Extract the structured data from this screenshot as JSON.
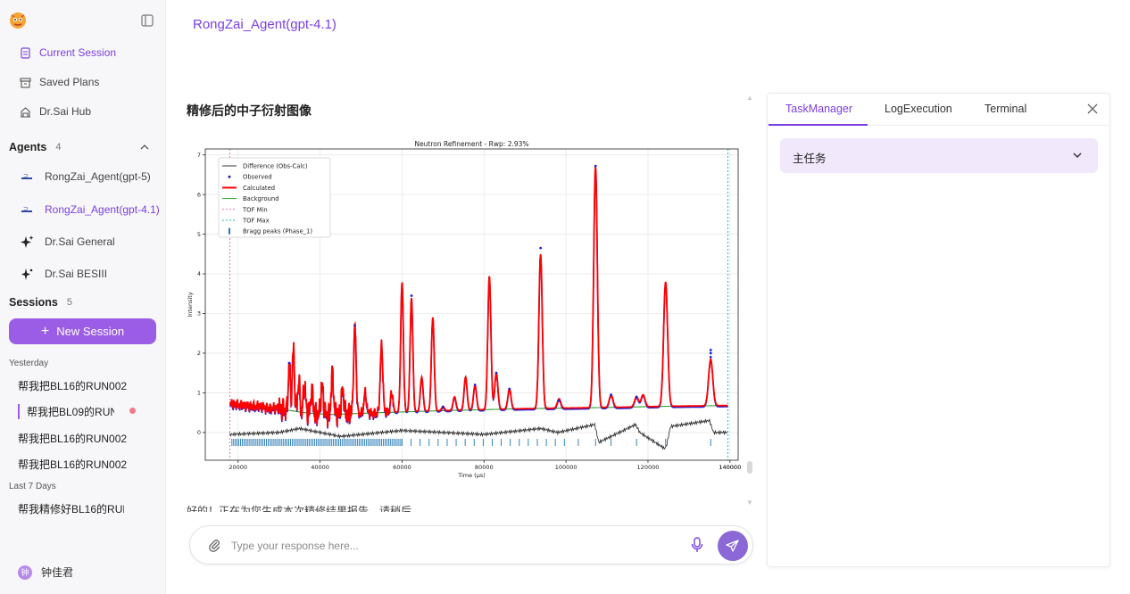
{
  "sidebar": {
    "nav": [
      {
        "label": "Current Session",
        "icon": "document-icon",
        "active": true
      },
      {
        "label": "Saved Plans",
        "icon": "archive-icon",
        "active": false
      },
      {
        "label": "Dr.Sai Hub",
        "icon": "hub-icon",
        "active": false
      }
    ],
    "agents_label": "Agents",
    "agents_count": "4",
    "agents": [
      {
        "label": "RongZai_Agent(gpt-5)",
        "active": false
      },
      {
        "label": "RongZai_Agent(gpt-4.1)",
        "active": true
      },
      {
        "label": "Dr.Sai General",
        "active": false
      },
      {
        "label": "Dr.Sai BESIII",
        "active": false
      }
    ],
    "sessions_label": "Sessions",
    "sessions_count": "5",
    "new_session_label": "New Session",
    "groups": [
      {
        "label": "Yesterday",
        "items": [
          "帮我把BL16的RUN002",
          "帮我把BL09的RUN",
          "帮我把BL16的RUN002",
          "帮我把BL16的RUN002"
        ]
      },
      {
        "label": "Last 7 Days",
        "items": [
          "帮我精修好BL16的RUN"
        ]
      }
    ],
    "user_name": "钟佳君",
    "user_initial": "钟"
  },
  "header": {
    "agent_title": "RongZai_Agent(gpt-4.1)"
  },
  "main": {
    "message_title": "精修后的中子衍射图像",
    "cut_text": "好的！正在为您生成本次精修结果报告，请稍后",
    "input_placeholder": "Type your response here..."
  },
  "right_panel": {
    "tabs": [
      "TaskManager",
      "LogExecution",
      "Terminal"
    ],
    "active_tab": "TaskManager",
    "task_label": "主任务"
  },
  "colors": {
    "accent": "#7b3fe4",
    "button": "#9b5de5",
    "observed": "#1f1fd6",
    "calculated": "#ff0000",
    "background_curve": "#2ca02c",
    "difference": "#222222",
    "bragg": "#1f77b4",
    "tof_min": "#e377c2",
    "tof_max": "#17becf"
  },
  "chart_data": {
    "type": "line",
    "title": "Neutron Refinement - Rwp: 2.93%",
    "xlabel": "Time (μs)",
    "ylabel": "Intensity",
    "xlim": [
      12000,
      142000
    ],
    "ylim": [
      -0.7,
      7.15
    ],
    "xticks": [
      20000,
      40000,
      60000,
      80000,
      100000,
      120000,
      140000
    ],
    "yticks": [
      0,
      1,
      2,
      3,
      4,
      5,
      6,
      7
    ],
    "grid": true,
    "legend_position": "top-left",
    "legend": [
      "Difference (Obs-Calc)",
      "Observed",
      "Calculated",
      "Background",
      "TOF Min",
      "TOF Max",
      "Bragg peaks (Phase_1)"
    ],
    "tof_min": 18000,
    "tof_max": 139500,
    "background": {
      "x": [
        18000,
        30000,
        36000,
        42000,
        55000,
        70000,
        90000,
        110000,
        125000,
        139500
      ],
      "y": [
        0.72,
        0.6,
        0.5,
        0.45,
        0.5,
        0.55,
        0.6,
        0.63,
        0.66,
        0.68
      ]
    },
    "peaks": [
      {
        "x": 32500,
        "y": 1.7
      },
      {
        "x": 33500,
        "y": 2.1
      },
      {
        "x": 34800,
        "y": 1.3
      },
      {
        "x": 36200,
        "y": 1.2
      },
      {
        "x": 38000,
        "y": 1.1
      },
      {
        "x": 40500,
        "y": 1.2
      },
      {
        "x": 43000,
        "y": 1.5
      },
      {
        "x": 45500,
        "y": 1.1
      },
      {
        "x": 48500,
        "y": 2.7
      },
      {
        "x": 51000,
        "y": 1.0
      },
      {
        "x": 55000,
        "y": 2.2
      },
      {
        "x": 57500,
        "y": 1.0
      },
      {
        "x": 60000,
        "y": 3.8
      },
      {
        "x": 62300,
        "y": 3.4
      },
      {
        "x": 64800,
        "y": 1.4
      },
      {
        "x": 67500,
        "y": 2.9
      },
      {
        "x": 70000,
        "y": 0.65
      },
      {
        "x": 72800,
        "y": 0.9
      },
      {
        "x": 75500,
        "y": 1.4
      },
      {
        "x": 77800,
        "y": 1.2
      },
      {
        "x": 81300,
        "y": 3.95
      },
      {
        "x": 83000,
        "y": 1.5
      },
      {
        "x": 86200,
        "y": 1.1
      },
      {
        "x": 93800,
        "y": 4.5
      },
      {
        "x": 98300,
        "y": 0.85
      },
      {
        "x": 107200,
        "y": 6.7
      },
      {
        "x": 111000,
        "y": 0.95
      },
      {
        "x": 117200,
        "y": 0.9
      },
      {
        "x": 118800,
        "y": 0.95
      },
      {
        "x": 124300,
        "y": 3.8
      },
      {
        "x": 135300,
        "y": 1.85
      }
    ],
    "observed_highlights": [
      {
        "x": 32500,
        "y": 1.75
      },
      {
        "x": 48500,
        "y": 2.7
      },
      {
        "x": 62300,
        "y": 3.45
      },
      {
        "x": 70000,
        "y": 0.65
      },
      {
        "x": 77800,
        "y": 1.2
      },
      {
        "x": 83000,
        "y": 1.5
      },
      {
        "x": 86200,
        "y": 1.1
      },
      {
        "x": 93800,
        "y": 4.65
      },
      {
        "x": 98300,
        "y": 0.8
      },
      {
        "x": 107200,
        "y": 6.72
      },
      {
        "x": 111000,
        "y": 0.95
      },
      {
        "x": 117200,
        "y": 0.9
      },
      {
        "x": 135300,
        "y": 2.08
      },
      {
        "x": 135300,
        "y": 2.0
      },
      {
        "x": 135300,
        "y": 1.9
      }
    ],
    "difference": {
      "x": [
        18000,
        30000,
        35000,
        45000,
        60000,
        80000,
        93800,
        98000,
        107000,
        108000,
        117000,
        118000,
        124000,
        124500,
        125500,
        135000,
        136000,
        139500
      ],
      "y": [
        -0.05,
        0.0,
        0.1,
        -0.1,
        0.05,
        -0.05,
        0.1,
        0.0,
        0.2,
        -0.25,
        0.2,
        0.0,
        -0.4,
        -0.35,
        0.15,
        0.3,
        0.0,
        0.0
      ]
    },
    "bragg_y": -0.25
  }
}
